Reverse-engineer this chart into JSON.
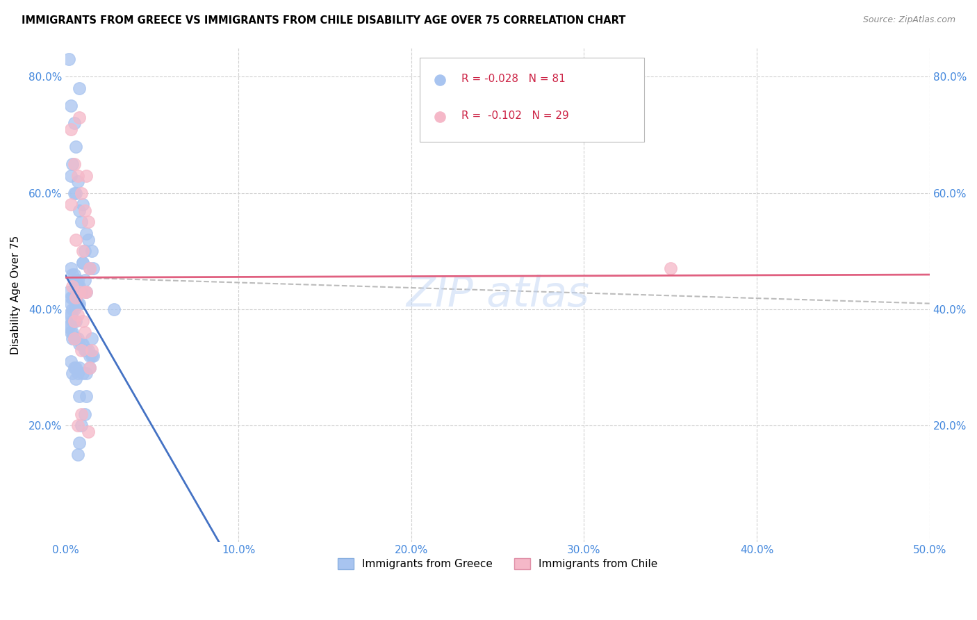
{
  "title": "IMMIGRANTS FROM GREECE VS IMMIGRANTS FROM CHILE DISABILITY AGE OVER 75 CORRELATION CHART",
  "source": "Source: ZipAtlas.com",
  "ylabel": "Disability Age Over 75",
  "x_min": 0.0,
  "x_max": 0.5,
  "y_min": 0.0,
  "y_max": 0.85,
  "x_ticks": [
    0.0,
    0.1,
    0.2,
    0.3,
    0.4,
    0.5
  ],
  "x_tick_labels": [
    "0.0%",
    "10.0%",
    "20.0%",
    "30.0%",
    "40.0%",
    "50.0%"
  ],
  "y_ticks": [
    0.2,
    0.4,
    0.6,
    0.8
  ],
  "y_tick_labels": [
    "20.0%",
    "40.0%",
    "60.0%",
    "80.0%"
  ],
  "legend_label_greece": "Immigrants from Greece",
  "legend_label_chile": "Immigrants from Chile",
  "greece_color": "#a8c4f0",
  "chile_color": "#f5b8c8",
  "greece_line_color": "#4472c4",
  "chile_line_color": "#e06080",
  "dash_line_color": "#bbbbbb",
  "greece_R": -0.028,
  "greece_N": 81,
  "chile_R": -0.102,
  "chile_N": 29,
  "greece_x": [
    0.002,
    0.008,
    0.003,
    0.005,
    0.006,
    0.004,
    0.003,
    0.007,
    0.006,
    0.005,
    0.008,
    0.009,
    0.01,
    0.012,
    0.011,
    0.013,
    0.015,
    0.01,
    0.014,
    0.016,
    0.003,
    0.004,
    0.005,
    0.006,
    0.007,
    0.008,
    0.009,
    0.01,
    0.011,
    0.012,
    0.002,
    0.003,
    0.004,
    0.005,
    0.006,
    0.007,
    0.008,
    0.003,
    0.004,
    0.005,
    0.002,
    0.003,
    0.004,
    0.005,
    0.006,
    0.007,
    0.001,
    0.002,
    0.003,
    0.004,
    0.005,
    0.006,
    0.007,
    0.008,
    0.009,
    0.01,
    0.011,
    0.012,
    0.013,
    0.014,
    0.015,
    0.016,
    0.003,
    0.005,
    0.007,
    0.004,
    0.006,
    0.008,
    0.01,
    0.012,
    0.004,
    0.006,
    0.008,
    0.015,
    0.014,
    0.012,
    0.011,
    0.009,
    0.008,
    0.007,
    0.028
  ],
  "greece_y": [
    0.83,
    0.78,
    0.75,
    0.72,
    0.68,
    0.65,
    0.63,
    0.62,
    0.6,
    0.6,
    0.57,
    0.55,
    0.58,
    0.53,
    0.5,
    0.52,
    0.5,
    0.48,
    0.47,
    0.47,
    0.47,
    0.46,
    0.46,
    0.45,
    0.45,
    0.44,
    0.43,
    0.48,
    0.45,
    0.43,
    0.43,
    0.42,
    0.42,
    0.42,
    0.42,
    0.41,
    0.41,
    0.41,
    0.4,
    0.4,
    0.39,
    0.39,
    0.38,
    0.38,
    0.38,
    0.44,
    0.37,
    0.37,
    0.36,
    0.36,
    0.35,
    0.35,
    0.35,
    0.34,
    0.34,
    0.34,
    0.33,
    0.33,
    0.33,
    0.32,
    0.32,
    0.32,
    0.31,
    0.3,
    0.29,
    0.29,
    0.28,
    0.3,
    0.29,
    0.29,
    0.35,
    0.3,
    0.25,
    0.35,
    0.3,
    0.25,
    0.22,
    0.2,
    0.17,
    0.15,
    0.4
  ],
  "chile_x": [
    0.003,
    0.005,
    0.007,
    0.009,
    0.011,
    0.013,
    0.006,
    0.01,
    0.014,
    0.004,
    0.008,
    0.012,
    0.005,
    0.009,
    0.013,
    0.007,
    0.011,
    0.015,
    0.006,
    0.01,
    0.014,
    0.008,
    0.012,
    0.003,
    0.007,
    0.011,
    0.005,
    0.009,
    0.35
  ],
  "chile_y": [
    0.71,
    0.65,
    0.63,
    0.6,
    0.57,
    0.55,
    0.52,
    0.5,
    0.47,
    0.44,
    0.43,
    0.43,
    0.35,
    0.22,
    0.19,
    0.39,
    0.36,
    0.33,
    0.42,
    0.38,
    0.3,
    0.73,
    0.63,
    0.58,
    0.2,
    0.43,
    0.38,
    0.33,
    0.47
  ]
}
